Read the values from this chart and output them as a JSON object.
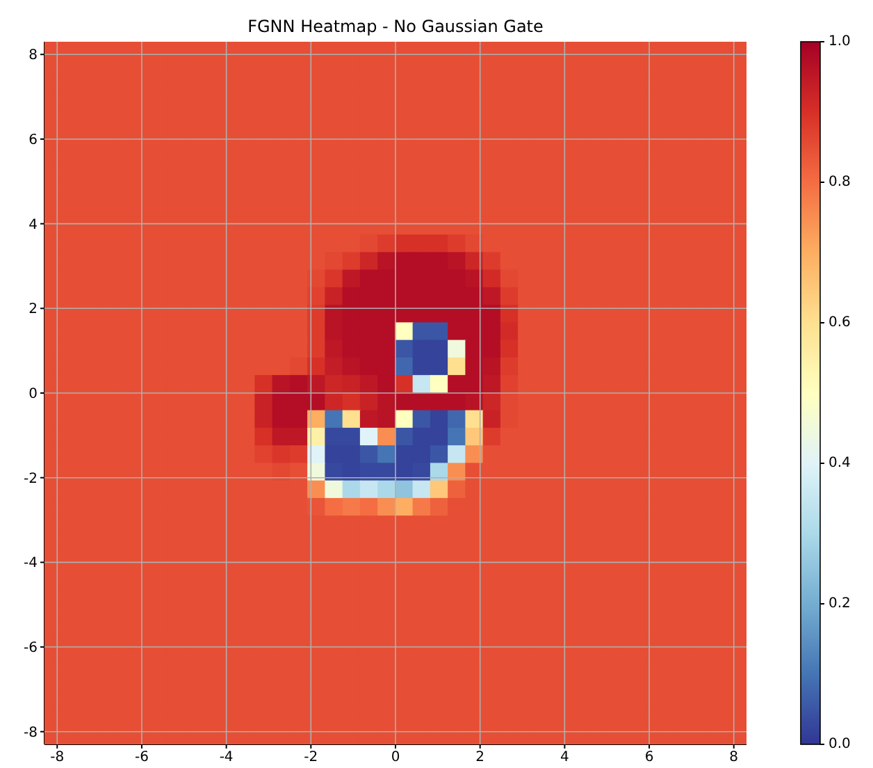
{
  "chart_data": {
    "type": "heatmap",
    "title": "FGNN Heatmap - No Gaussian Gate",
    "x": [
      -8.0925,
      -7.6775,
      -7.2625,
      -6.8475,
      -6.4325,
      -6.0175,
      -5.6025,
      -5.1875,
      -4.7725,
      -4.3575,
      -3.9425,
      -3.5275,
      -3.1125,
      -2.6975,
      -2.2825,
      -1.8675,
      -1.4525,
      -1.0375,
      -0.6225,
      -0.2075,
      0.2075,
      0.6225,
      1.0375,
      1.4525,
      1.8675,
      2.2825,
      2.6975,
      3.1125,
      3.5275,
      3.9425,
      4.3575,
      4.7725,
      5.1875,
      5.6025,
      6.0175,
      6.4325,
      6.8475,
      7.2625,
      7.6775,
      8.0925
    ],
    "y": [
      8.0925,
      7.6775,
      7.2625,
      6.8475,
      6.4325,
      6.0175,
      5.6025,
      5.1875,
      4.7725,
      4.3575,
      3.9425,
      3.5275,
      3.1125,
      2.6975,
      2.2825,
      1.8675,
      1.4525,
      1.0375,
      0.6225,
      0.2075,
      -0.2075,
      -0.6225,
      -1.0375,
      -1.4525,
      -1.8675,
      -2.2825,
      -2.6975,
      -3.1125,
      -3.5275,
      -3.9425,
      -4.3575,
      -4.7725,
      -5.1875,
      -5.6025,
      -6.0175,
      -6.4325,
      -6.8475,
      -7.2625,
      -7.6775,
      -8.0925
    ],
    "xlim": [
      -8.3,
      8.3
    ],
    "ylim": [
      -8.3,
      8.3
    ],
    "xticks": [
      -8,
      -6,
      -4,
      -2,
      0,
      2,
      4,
      6,
      8
    ],
    "yticks": [
      -8,
      -6,
      -4,
      -2,
      0,
      2,
      4,
      6,
      8
    ],
    "clim": [
      0,
      1
    ],
    "cticks": [
      {
        "value": 0,
        "label": "0.0"
      },
      0.2,
      0.4,
      0.6,
      0.8,
      {
        "value": 1,
        "label": "1.0"
      }
    ],
    "grid": true,
    "cells": [
      [
        0.85,
        0.85,
        0.85,
        0.85,
        0.85,
        0.85,
        0.85,
        0.85,
        0.85,
        0.85,
        0.85,
        0.85,
        0.85,
        0.85,
        0.85,
        0.85,
        0.85,
        0.85,
        0.85,
        0.85,
        0.85,
        0.85,
        0.85,
        0.85,
        0.85,
        0.85,
        0.85,
        0.85,
        0.85,
        0.85,
        0.85,
        0.85,
        0.85,
        0.85,
        0.85,
        0.85,
        0.85,
        0.85,
        0.85,
        0.85
      ],
      [
        0.85,
        0.85,
        0.85,
        0.85,
        0.85,
        0.85,
        0.85,
        0.85,
        0.85,
        0.85,
        0.85,
        0.85,
        0.85,
        0.85,
        0.85,
        0.85,
        0.85,
        0.85,
        0.85,
        0.85,
        0.85,
        0.85,
        0.85,
        0.85,
        0.85,
        0.85,
        0.85,
        0.85,
        0.85,
        0.85,
        0.85,
        0.85,
        0.85,
        0.85,
        0.85,
        0.85,
        0.85,
        0.85,
        0.85,
        0.85
      ],
      [
        0.85,
        0.85,
        0.85,
        0.85,
        0.85,
        0.85,
        0.85,
        0.85,
        0.85,
        0.85,
        0.85,
        0.85,
        0.85,
        0.85,
        0.85,
        0.85,
        0.85,
        0.85,
        0.85,
        0.85,
        0.85,
        0.85,
        0.85,
        0.85,
        0.85,
        0.85,
        0.85,
        0.85,
        0.85,
        0.85,
        0.85,
        0.85,
        0.85,
        0.85,
        0.85,
        0.85,
        0.85,
        0.85,
        0.85,
        0.85
      ],
      [
        0.85,
        0.85,
        0.85,
        0.85,
        0.85,
        0.85,
        0.85,
        0.85,
        0.85,
        0.85,
        0.85,
        0.85,
        0.85,
        0.85,
        0.85,
        0.85,
        0.85,
        0.85,
        0.85,
        0.85,
        0.85,
        0.85,
        0.85,
        0.85,
        0.85,
        0.85,
        0.85,
        0.85,
        0.85,
        0.85,
        0.85,
        0.85,
        0.85,
        0.85,
        0.85,
        0.85,
        0.85,
        0.85,
        0.85,
        0.85
      ],
      [
        0.85,
        0.85,
        0.85,
        0.85,
        0.85,
        0.85,
        0.85,
        0.85,
        0.85,
        0.85,
        0.85,
        0.85,
        0.85,
        0.85,
        0.85,
        0.85,
        0.85,
        0.85,
        0.85,
        0.85,
        0.85,
        0.85,
        0.85,
        0.85,
        0.85,
        0.85,
        0.85,
        0.85,
        0.85,
        0.85,
        0.85,
        0.85,
        0.85,
        0.85,
        0.85,
        0.85,
        0.85,
        0.85,
        0.85,
        0.85
      ],
      [
        0.85,
        0.85,
        0.85,
        0.85,
        0.85,
        0.85,
        0.85,
        0.85,
        0.85,
        0.85,
        0.85,
        0.85,
        0.85,
        0.85,
        0.85,
        0.85,
        0.85,
        0.85,
        0.85,
        0.85,
        0.85,
        0.85,
        0.85,
        0.85,
        0.85,
        0.85,
        0.85,
        0.85,
        0.85,
        0.85,
        0.85,
        0.85,
        0.85,
        0.85,
        0.85,
        0.85,
        0.85,
        0.85,
        0.85,
        0.85
      ],
      [
        0.85,
        0.85,
        0.85,
        0.85,
        0.85,
        0.85,
        0.85,
        0.85,
        0.85,
        0.85,
        0.85,
        0.85,
        0.85,
        0.85,
        0.85,
        0.85,
        0.85,
        0.85,
        0.85,
        0.85,
        0.85,
        0.85,
        0.85,
        0.85,
        0.85,
        0.85,
        0.85,
        0.85,
        0.85,
        0.85,
        0.85,
        0.85,
        0.85,
        0.85,
        0.85,
        0.85,
        0.85,
        0.85,
        0.85,
        0.85
      ],
      [
        0.85,
        0.85,
        0.85,
        0.85,
        0.85,
        0.85,
        0.85,
        0.85,
        0.85,
        0.85,
        0.85,
        0.85,
        0.85,
        0.85,
        0.85,
        0.85,
        0.85,
        0.85,
        0.85,
        0.85,
        0.85,
        0.85,
        0.85,
        0.85,
        0.85,
        0.85,
        0.85,
        0.85,
        0.85,
        0.85,
        0.85,
        0.85,
        0.85,
        0.85,
        0.85,
        0.85,
        0.85,
        0.85,
        0.85,
        0.85
      ],
      [
        0.85,
        0.85,
        0.85,
        0.85,
        0.85,
        0.85,
        0.85,
        0.85,
        0.85,
        0.85,
        0.85,
        0.85,
        0.85,
        0.85,
        0.85,
        0.85,
        0.85,
        0.85,
        0.85,
        0.85,
        0.85,
        0.85,
        0.85,
        0.85,
        0.85,
        0.85,
        0.85,
        0.85,
        0.85,
        0.85,
        0.85,
        0.85,
        0.85,
        0.85,
        0.85,
        0.85,
        0.85,
        0.85,
        0.85,
        0.85
      ],
      [
        0.85,
        0.85,
        0.85,
        0.85,
        0.85,
        0.85,
        0.85,
        0.85,
        0.85,
        0.85,
        0.85,
        0.85,
        0.85,
        0.85,
        0.85,
        0.85,
        0.85,
        0.85,
        0.85,
        0.85,
        0.85,
        0.85,
        0.85,
        0.85,
        0.85,
        0.85,
        0.85,
        0.85,
        0.85,
        0.85,
        0.85,
        0.85,
        0.85,
        0.85,
        0.85,
        0.85,
        0.85,
        0.85,
        0.85,
        0.85
      ],
      [
        0.85,
        0.85,
        0.85,
        0.85,
        0.85,
        0.85,
        0.85,
        0.85,
        0.85,
        0.85,
        0.85,
        0.85,
        0.85,
        0.85,
        0.85,
        0.85,
        0.85,
        0.85,
        0.85,
        0.85,
        0.85,
        0.85,
        0.85,
        0.85,
        0.85,
        0.85,
        0.85,
        0.85,
        0.85,
        0.85,
        0.85,
        0.85,
        0.85,
        0.85,
        0.85,
        0.85,
        0.85,
        0.85,
        0.85,
        0.85
      ],
      [
        0.85,
        0.85,
        0.85,
        0.85,
        0.85,
        0.85,
        0.85,
        0.85,
        0.85,
        0.85,
        0.85,
        0.85,
        0.85,
        0.85,
        0.85,
        0.85,
        0.85,
        0.85,
        0.86,
        0.88,
        0.9,
        0.9,
        0.9,
        0.88,
        0.86,
        0.85,
        0.85,
        0.85,
        0.85,
        0.85,
        0.85,
        0.85,
        0.85,
        0.85,
        0.85,
        0.85,
        0.85,
        0.85,
        0.85,
        0.85
      ],
      [
        0.85,
        0.85,
        0.85,
        0.85,
        0.85,
        0.85,
        0.85,
        0.85,
        0.85,
        0.85,
        0.85,
        0.85,
        0.85,
        0.85,
        0.85,
        0.85,
        0.86,
        0.88,
        0.92,
        0.96,
        0.97,
        0.97,
        0.97,
        0.96,
        0.92,
        0.88,
        0.85,
        0.85,
        0.85,
        0.85,
        0.85,
        0.85,
        0.85,
        0.85,
        0.85,
        0.85,
        0.85,
        0.85,
        0.85,
        0.85
      ],
      [
        0.85,
        0.85,
        0.85,
        0.85,
        0.85,
        0.85,
        0.85,
        0.85,
        0.85,
        0.85,
        0.85,
        0.85,
        0.85,
        0.85,
        0.85,
        0.86,
        0.89,
        0.95,
        0.97,
        0.97,
        0.97,
        0.97,
        0.97,
        0.97,
        0.96,
        0.91,
        0.86,
        0.85,
        0.85,
        0.85,
        0.85,
        0.85,
        0.85,
        0.85,
        0.85,
        0.85,
        0.85,
        0.85,
        0.85,
        0.85
      ],
      [
        0.85,
        0.85,
        0.85,
        0.85,
        0.85,
        0.85,
        0.85,
        0.85,
        0.85,
        0.85,
        0.85,
        0.85,
        0.85,
        0.85,
        0.85,
        0.87,
        0.93,
        0.97,
        0.97,
        0.97,
        0.97,
        0.97,
        0.97,
        0.97,
        0.97,
        0.95,
        0.88,
        0.85,
        0.85,
        0.85,
        0.85,
        0.85,
        0.85,
        0.85,
        0.85,
        0.85,
        0.85,
        0.85,
        0.85,
        0.85
      ],
      [
        0.85,
        0.85,
        0.85,
        0.85,
        0.85,
        0.85,
        0.85,
        0.85,
        0.85,
        0.85,
        0.85,
        0.85,
        0.85,
        0.85,
        0.85,
        0.88,
        0.96,
        0.97,
        0.97,
        0.97,
        0.97,
        0.97,
        0.97,
        0.97,
        0.97,
        0.97,
        0.9,
        0.85,
        0.85,
        0.85,
        0.85,
        0.85,
        0.85,
        0.85,
        0.85,
        0.85,
        0.85,
        0.85,
        0.85,
        0.85
      ],
      [
        0.85,
        0.85,
        0.85,
        0.85,
        0.85,
        0.85,
        0.85,
        0.85,
        0.85,
        0.85,
        0.85,
        0.85,
        0.85,
        0.85,
        0.85,
        0.88,
        0.96,
        0.97,
        0.97,
        0.97,
        0.5,
        0.05,
        0.05,
        0.97,
        0.97,
        0.97,
        0.91,
        0.85,
        0.85,
        0.85,
        0.85,
        0.85,
        0.85,
        0.85,
        0.85,
        0.85,
        0.85,
        0.85,
        0.85,
        0.85
      ],
      [
        0.85,
        0.85,
        0.85,
        0.85,
        0.85,
        0.85,
        0.85,
        0.85,
        0.85,
        0.85,
        0.85,
        0.85,
        0.85,
        0.85,
        0.85,
        0.88,
        0.95,
        0.97,
        0.97,
        0.97,
        0.05,
        0.02,
        0.02,
        0.45,
        0.97,
        0.97,
        0.9,
        0.85,
        0.85,
        0.85,
        0.85,
        0.85,
        0.85,
        0.85,
        0.85,
        0.85,
        0.85,
        0.85,
        0.85,
        0.85
      ],
      [
        0.85,
        0.85,
        0.85,
        0.85,
        0.85,
        0.85,
        0.85,
        0.85,
        0.85,
        0.85,
        0.85,
        0.85,
        0.85,
        0.85,
        0.86,
        0.9,
        0.94,
        0.96,
        0.97,
        0.97,
        0.08,
        0.02,
        0.02,
        0.6,
        0.97,
        0.96,
        0.88,
        0.85,
        0.85,
        0.85,
        0.85,
        0.85,
        0.85,
        0.85,
        0.85,
        0.85,
        0.85,
        0.85,
        0.85,
        0.85
      ],
      [
        0.85,
        0.85,
        0.85,
        0.85,
        0.85,
        0.85,
        0.85,
        0.85,
        0.85,
        0.85,
        0.85,
        0.85,
        0.9,
        0.96,
        0.97,
        0.95,
        0.92,
        0.93,
        0.95,
        0.97,
        0.9,
        0.35,
        0.5,
        0.97,
        0.97,
        0.95,
        0.87,
        0.85,
        0.85,
        0.85,
        0.85,
        0.85,
        0.85,
        0.85,
        0.85,
        0.85,
        0.85,
        0.85,
        0.85,
        0.85
      ],
      [
        0.85,
        0.85,
        0.85,
        0.85,
        0.85,
        0.85,
        0.85,
        0.85,
        0.85,
        0.85,
        0.85,
        0.85,
        0.93,
        0.97,
        0.97,
        0.97,
        0.92,
        0.9,
        0.93,
        0.96,
        0.97,
        0.97,
        0.97,
        0.97,
        0.96,
        0.92,
        0.86,
        0.85,
        0.85,
        0.85,
        0.85,
        0.85,
        0.85,
        0.85,
        0.85,
        0.85,
        0.85,
        0.85,
        0.85,
        0.85
      ],
      [
        0.85,
        0.85,
        0.85,
        0.85,
        0.85,
        0.85,
        0.85,
        0.85,
        0.85,
        0.85,
        0.85,
        0.85,
        0.93,
        0.97,
        0.97,
        0.7,
        0.1,
        0.6,
        0.95,
        0.96,
        0.5,
        0.05,
        0.02,
        0.08,
        0.6,
        0.93,
        0.86,
        0.85,
        0.85,
        0.85,
        0.85,
        0.85,
        0.85,
        0.85,
        0.85,
        0.85,
        0.85,
        0.85,
        0.85,
        0.85
      ],
      [
        0.85,
        0.85,
        0.85,
        0.85,
        0.85,
        0.85,
        0.85,
        0.85,
        0.85,
        0.85,
        0.85,
        0.85,
        0.9,
        0.95,
        0.95,
        0.55,
        0.03,
        0.03,
        0.4,
        0.75,
        0.05,
        0.02,
        0.02,
        0.1,
        0.65,
        0.88,
        0.85,
        0.85,
        0.85,
        0.85,
        0.85,
        0.85,
        0.85,
        0.85,
        0.85,
        0.85,
        0.85,
        0.85,
        0.85,
        0.85
      ],
      [
        0.85,
        0.85,
        0.85,
        0.85,
        0.85,
        0.85,
        0.85,
        0.85,
        0.85,
        0.85,
        0.85,
        0.85,
        0.87,
        0.89,
        0.88,
        0.4,
        0.02,
        0.02,
        0.05,
        0.1,
        0.02,
        0.02,
        0.05,
        0.35,
        0.75,
        0.85,
        0.85,
        0.85,
        0.85,
        0.85,
        0.85,
        0.85,
        0.85,
        0.85,
        0.85,
        0.85,
        0.85,
        0.85,
        0.85,
        0.85
      ],
      [
        0.85,
        0.85,
        0.85,
        0.85,
        0.85,
        0.85,
        0.85,
        0.85,
        0.85,
        0.85,
        0.85,
        0.85,
        0.85,
        0.86,
        0.85,
        0.45,
        0.03,
        0.02,
        0.03,
        0.03,
        0.02,
        0.03,
        0.3,
        0.75,
        0.85,
        0.85,
        0.85,
        0.85,
        0.85,
        0.85,
        0.85,
        0.85,
        0.85,
        0.85,
        0.85,
        0.85,
        0.85,
        0.85,
        0.85,
        0.85
      ],
      [
        0.85,
        0.85,
        0.85,
        0.85,
        0.85,
        0.85,
        0.85,
        0.85,
        0.85,
        0.85,
        0.85,
        0.85,
        0.85,
        0.85,
        0.85,
        0.75,
        0.45,
        0.3,
        0.35,
        0.3,
        0.25,
        0.35,
        0.65,
        0.82,
        0.85,
        0.85,
        0.85,
        0.85,
        0.85,
        0.85,
        0.85,
        0.85,
        0.85,
        0.85,
        0.85,
        0.85,
        0.85,
        0.85,
        0.85,
        0.85
      ],
      [
        0.85,
        0.85,
        0.85,
        0.85,
        0.85,
        0.85,
        0.85,
        0.85,
        0.85,
        0.85,
        0.85,
        0.85,
        0.85,
        0.85,
        0.85,
        0.84,
        0.8,
        0.78,
        0.8,
        0.75,
        0.7,
        0.78,
        0.82,
        0.85,
        0.85,
        0.85,
        0.85,
        0.85,
        0.85,
        0.85,
        0.85,
        0.85,
        0.85,
        0.85,
        0.85,
        0.85,
        0.85,
        0.85,
        0.85,
        0.85
      ],
      [
        0.85,
        0.85,
        0.85,
        0.85,
        0.85,
        0.85,
        0.85,
        0.85,
        0.85,
        0.85,
        0.85,
        0.85,
        0.85,
        0.85,
        0.85,
        0.85,
        0.85,
        0.85,
        0.85,
        0.85,
        0.85,
        0.85,
        0.85,
        0.85,
        0.85,
        0.85,
        0.85,
        0.85,
        0.85,
        0.85,
        0.85,
        0.85,
        0.85,
        0.85,
        0.85,
        0.85,
        0.85,
        0.85,
        0.85,
        0.85
      ],
      [
        0.85,
        0.85,
        0.85,
        0.85,
        0.85,
        0.85,
        0.85,
        0.85,
        0.85,
        0.85,
        0.85,
        0.85,
        0.85,
        0.85,
        0.85,
        0.85,
        0.85,
        0.85,
        0.85,
        0.85,
        0.85,
        0.85,
        0.85,
        0.85,
        0.85,
        0.85,
        0.85,
        0.85,
        0.85,
        0.85,
        0.85,
        0.85,
        0.85,
        0.85,
        0.85,
        0.85,
        0.85,
        0.85,
        0.85,
        0.85
      ],
      [
        0.85,
        0.85,
        0.85,
        0.85,
        0.85,
        0.85,
        0.85,
        0.85,
        0.85,
        0.85,
        0.85,
        0.85,
        0.85,
        0.85,
        0.85,
        0.85,
        0.85,
        0.85,
        0.85,
        0.85,
        0.85,
        0.85,
        0.85,
        0.85,
        0.85,
        0.85,
        0.85,
        0.85,
        0.85,
        0.85,
        0.85,
        0.85,
        0.85,
        0.85,
        0.85,
        0.85,
        0.85,
        0.85,
        0.85,
        0.85
      ],
      [
        0.85,
        0.85,
        0.85,
        0.85,
        0.85,
        0.85,
        0.85,
        0.85,
        0.85,
        0.85,
        0.85,
        0.85,
        0.85,
        0.85,
        0.85,
        0.85,
        0.85,
        0.85,
        0.85,
        0.85,
        0.85,
        0.85,
        0.85,
        0.85,
        0.85,
        0.85,
        0.85,
        0.85,
        0.85,
        0.85,
        0.85,
        0.85,
        0.85,
        0.85,
        0.85,
        0.85,
        0.85,
        0.85,
        0.85,
        0.85
      ],
      [
        0.85,
        0.85,
        0.85,
        0.85,
        0.85,
        0.85,
        0.85,
        0.85,
        0.85,
        0.85,
        0.85,
        0.85,
        0.85,
        0.85,
        0.85,
        0.85,
        0.85,
        0.85,
        0.85,
        0.85,
        0.85,
        0.85,
        0.85,
        0.85,
        0.85,
        0.85,
        0.85,
        0.85,
        0.85,
        0.85,
        0.85,
        0.85,
        0.85,
        0.85,
        0.85,
        0.85,
        0.85,
        0.85,
        0.85,
        0.85
      ],
      [
        0.85,
        0.85,
        0.85,
        0.85,
        0.85,
        0.85,
        0.85,
        0.85,
        0.85,
        0.85,
        0.85,
        0.85,
        0.85,
        0.85,
        0.85,
        0.85,
        0.85,
        0.85,
        0.85,
        0.85,
        0.85,
        0.85,
        0.85,
        0.85,
        0.85,
        0.85,
        0.85,
        0.85,
        0.85,
        0.85,
        0.85,
        0.85,
        0.85,
        0.85,
        0.85,
        0.85,
        0.85,
        0.85,
        0.85,
        0.85
      ],
      [
        0.85,
        0.85,
        0.85,
        0.85,
        0.85,
        0.85,
        0.85,
        0.85,
        0.85,
        0.85,
        0.85,
        0.85,
        0.85,
        0.85,
        0.85,
        0.85,
        0.85,
        0.85,
        0.85,
        0.85,
        0.85,
        0.85,
        0.85,
        0.85,
        0.85,
        0.85,
        0.85,
        0.85,
        0.85,
        0.85,
        0.85,
        0.85,
        0.85,
        0.85,
        0.85,
        0.85,
        0.85,
        0.85,
        0.85,
        0.85
      ],
      [
        0.85,
        0.85,
        0.85,
        0.85,
        0.85,
        0.85,
        0.85,
        0.85,
        0.85,
        0.85,
        0.85,
        0.85,
        0.85,
        0.85,
        0.85,
        0.85,
        0.85,
        0.85,
        0.85,
        0.85,
        0.85,
        0.85,
        0.85,
        0.85,
        0.85,
        0.85,
        0.85,
        0.85,
        0.85,
        0.85,
        0.85,
        0.85,
        0.85,
        0.85,
        0.85,
        0.85,
        0.85,
        0.85,
        0.85,
        0.85
      ],
      [
        0.85,
        0.85,
        0.85,
        0.85,
        0.85,
        0.85,
        0.85,
        0.85,
        0.85,
        0.85,
        0.85,
        0.85,
        0.85,
        0.85,
        0.85,
        0.85,
        0.85,
        0.85,
        0.85,
        0.85,
        0.85,
        0.85,
        0.85,
        0.85,
        0.85,
        0.85,
        0.85,
        0.85,
        0.85,
        0.85,
        0.85,
        0.85,
        0.85,
        0.85,
        0.85,
        0.85,
        0.85,
        0.85,
        0.85,
        0.85
      ],
      [
        0.85,
        0.85,
        0.85,
        0.85,
        0.85,
        0.85,
        0.85,
        0.85,
        0.85,
        0.85,
        0.85,
        0.85,
        0.85,
        0.85,
        0.85,
        0.85,
        0.85,
        0.85,
        0.85,
        0.85,
        0.85,
        0.85,
        0.85,
        0.85,
        0.85,
        0.85,
        0.85,
        0.85,
        0.85,
        0.85,
        0.85,
        0.85,
        0.85,
        0.85,
        0.85,
        0.85,
        0.85,
        0.85,
        0.85,
        0.85
      ],
      [
        0.85,
        0.85,
        0.85,
        0.85,
        0.85,
        0.85,
        0.85,
        0.85,
        0.85,
        0.85,
        0.85,
        0.85,
        0.85,
        0.85,
        0.85,
        0.85,
        0.85,
        0.85,
        0.85,
        0.85,
        0.85,
        0.85,
        0.85,
        0.85,
        0.85,
        0.85,
        0.85,
        0.85,
        0.85,
        0.85,
        0.85,
        0.85,
        0.85,
        0.85,
        0.85,
        0.85,
        0.85,
        0.85,
        0.85,
        0.85
      ],
      [
        0.85,
        0.85,
        0.85,
        0.85,
        0.85,
        0.85,
        0.85,
        0.85,
        0.85,
        0.85,
        0.85,
        0.85,
        0.85,
        0.85,
        0.85,
        0.85,
        0.85,
        0.85,
        0.85,
        0.85,
        0.85,
        0.85,
        0.85,
        0.85,
        0.85,
        0.85,
        0.85,
        0.85,
        0.85,
        0.85,
        0.85,
        0.85,
        0.85,
        0.85,
        0.85,
        0.85,
        0.85,
        0.85,
        0.85,
        0.85
      ],
      [
        0.85,
        0.85,
        0.85,
        0.85,
        0.85,
        0.85,
        0.85,
        0.85,
        0.85,
        0.85,
        0.85,
        0.85,
        0.85,
        0.85,
        0.85,
        0.85,
        0.85,
        0.85,
        0.85,
        0.85,
        0.85,
        0.85,
        0.85,
        0.85,
        0.85,
        0.85,
        0.85,
        0.85,
        0.85,
        0.85,
        0.85,
        0.85,
        0.85,
        0.85,
        0.85,
        0.85,
        0.85,
        0.85,
        0.85,
        0.85
      ]
    ]
  }
}
